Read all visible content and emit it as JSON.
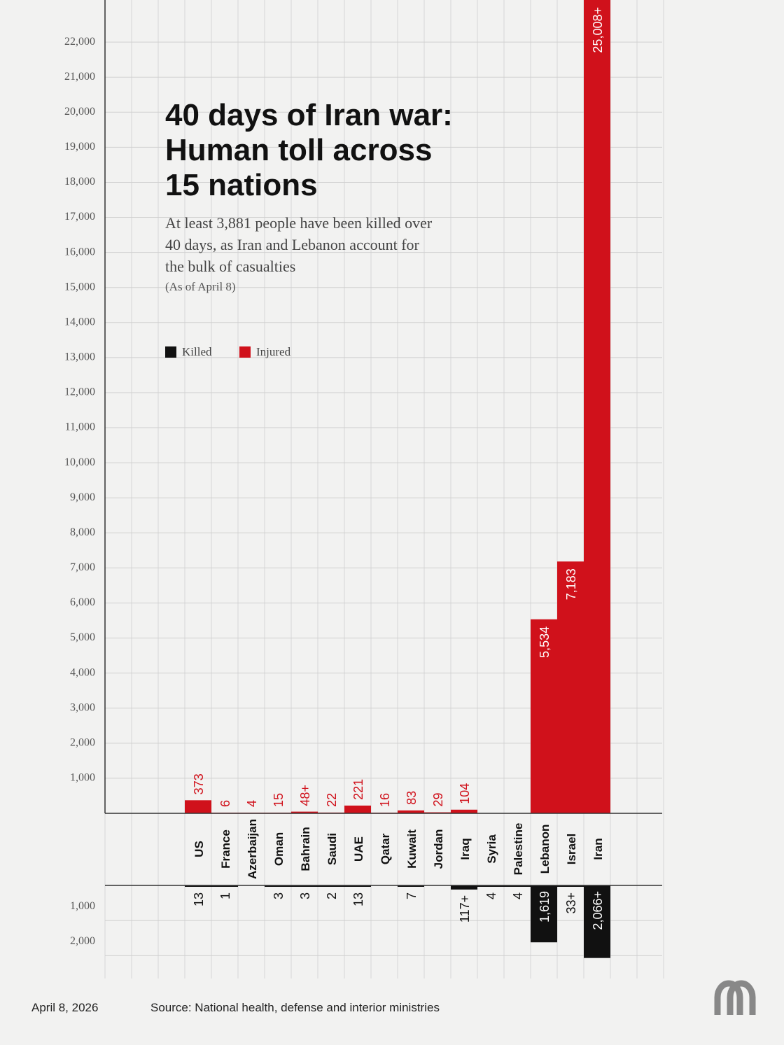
{
  "chart_data": {
    "type": "bar",
    "title": "40 days of Iran war:\nHuman toll across\n15 nations",
    "subtitle": "At least 3,881 people have been killed over\n40 days, as Iran and Lebanon account for\nthe bulk of casualties",
    "note": "(As of April 8)",
    "date": "April 8, 2026",
    "source": "Source: National health, defense and interior ministries",
    "categories": [
      "US",
      "France",
      "Azerbaijan",
      "Oman",
      "Bahrain",
      "Saudi",
      "UAE",
      "Qatar",
      "Kuwait",
      "Jordan",
      "Iraq",
      "Syria",
      "Palestine",
      "Lebanon",
      "Israel",
      "Iran"
    ],
    "series": [
      {
        "name": "Injured",
        "color": "#d0111b",
        "values": [
          373,
          6,
          4,
          15,
          48,
          22,
          221,
          16,
          83,
          29,
          104,
          null,
          null,
          5534,
          7183,
          25008
        ],
        "value_labels": [
          "373",
          "6",
          "4",
          "15",
          "48+",
          "22",
          "221",
          "16",
          "83",
          "29",
          "104",
          null,
          null,
          "5,534",
          "7,183",
          "25,008+"
        ]
      },
      {
        "name": "Killed",
        "color": "#111111",
        "axis": "y2",
        "values": [
          13,
          1,
          null,
          3,
          3,
          2,
          13,
          null,
          7,
          null,
          117,
          4,
          4,
          1619,
          33,
          2066
        ],
        "value_labels": [
          "13",
          "1",
          null,
          "3",
          "3",
          "2",
          "13",
          null,
          "7",
          null,
          "117+",
          "4",
          "4",
          "1,619",
          "33+",
          "2,066+"
        ]
      }
    ],
    "legend_order": [
      1,
      0
    ],
    "ylim": [
      0,
      23200
    ],
    "yticks": [
      {
        "value": 1000,
        "label": "1,000"
      },
      {
        "value": 2000,
        "label": "2,000"
      },
      {
        "value": 3000,
        "label": "3,000"
      },
      {
        "value": 4000,
        "label": "4,000"
      },
      {
        "value": 5000,
        "label": "5,000"
      },
      {
        "value": 6000,
        "label": "6,000"
      },
      {
        "value": 7000,
        "label": "7,000"
      },
      {
        "value": 8000,
        "label": "8,000"
      },
      {
        "value": 9000,
        "label": "9,000"
      },
      {
        "value": 10000,
        "label": "10,000"
      },
      {
        "value": 11000,
        "label": "11,000"
      },
      {
        "value": 12000,
        "label": "12,000"
      },
      {
        "value": 13000,
        "label": "13,000"
      },
      {
        "value": 14000,
        "label": "14,000"
      },
      {
        "value": 15000,
        "label": "15,000"
      },
      {
        "value": 16000,
        "label": "16,000"
      },
      {
        "value": 17000,
        "label": "17,000"
      },
      {
        "value": 18000,
        "label": "18,000"
      },
      {
        "value": 19000,
        "label": "19,000"
      },
      {
        "value": 20000,
        "label": "20,000"
      },
      {
        "value": 21000,
        "label": "21,000"
      },
      {
        "value": 22000,
        "label": "22,000"
      }
    ],
    "y2lim": [
      0,
      2650
    ],
    "y2ticks": [
      {
        "value": 1000,
        "label": "1,000"
      },
      {
        "value": 2000,
        "label": "2,000"
      }
    ],
    "grid": true
  }
}
